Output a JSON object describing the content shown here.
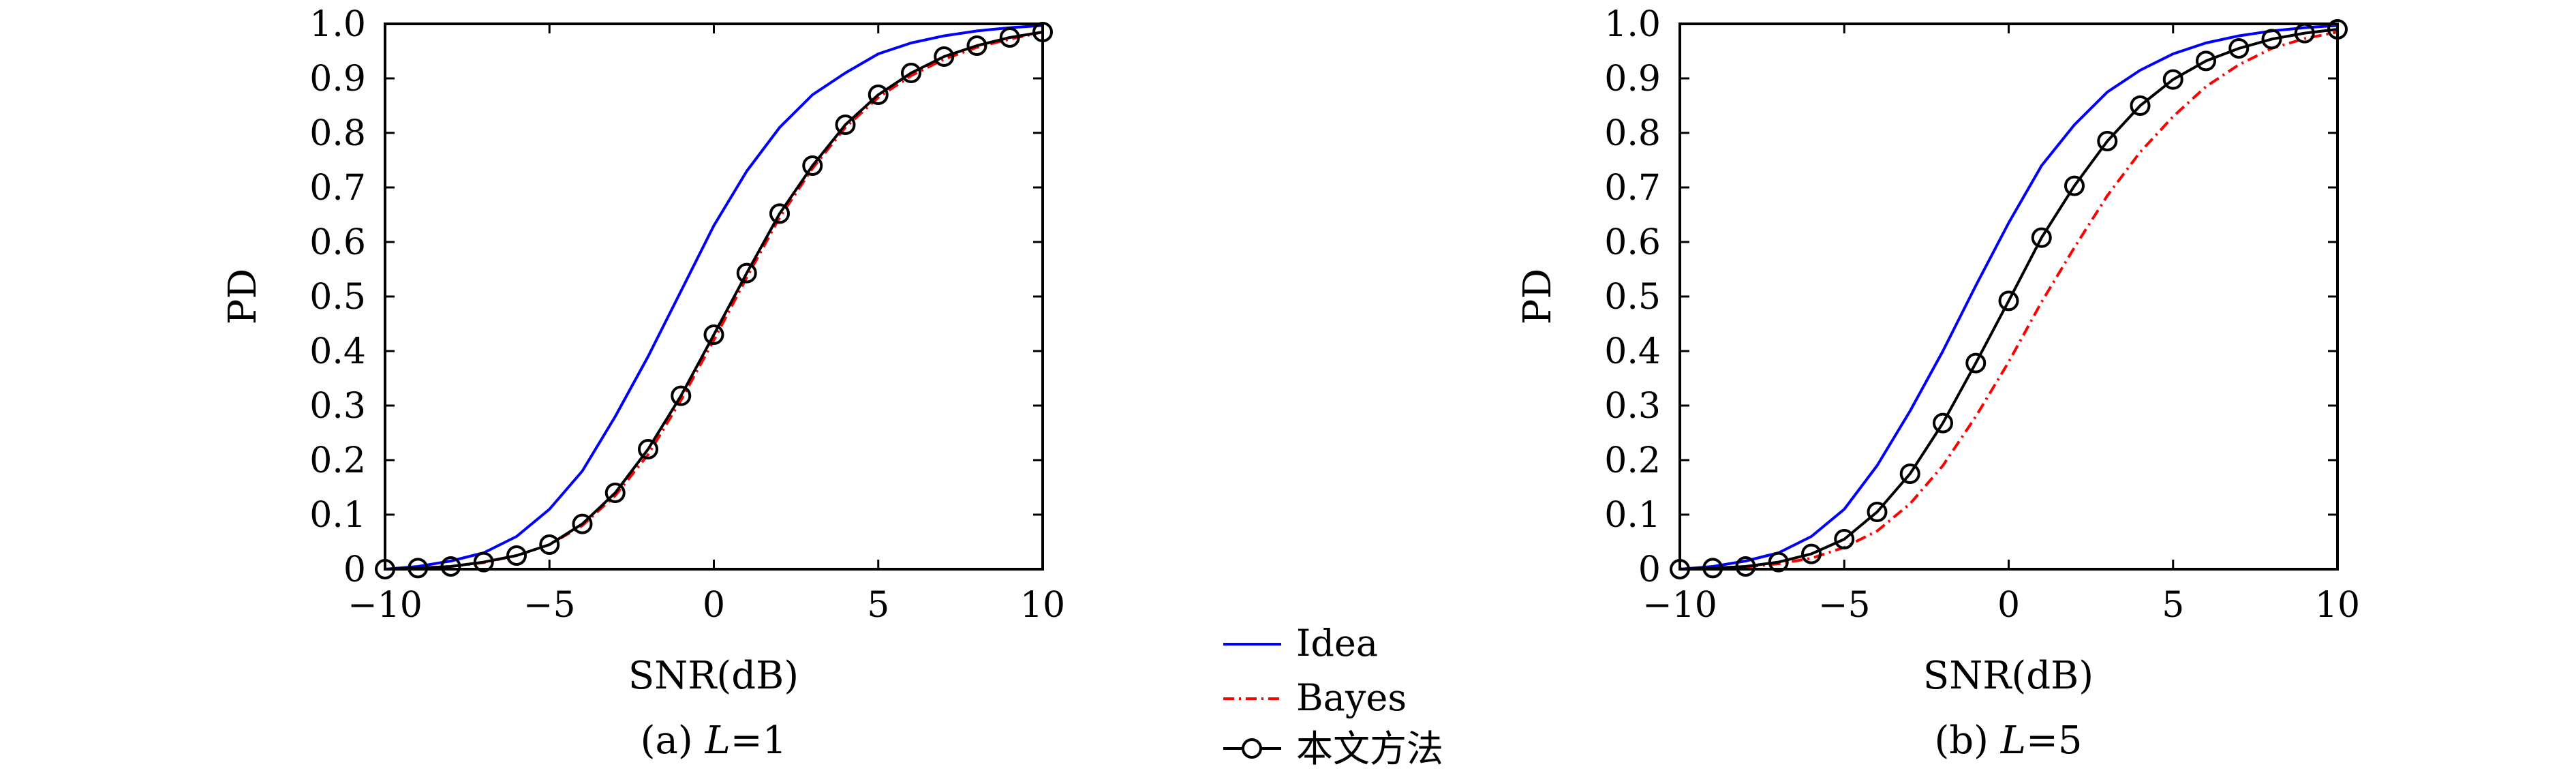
{
  "legend": {
    "items": [
      {
        "label": "Idea",
        "color": "#0000ff",
        "style": "solid"
      },
      {
        "label": "Bayes",
        "color": "#ff0000",
        "style": "dashdot"
      },
      {
        "label": "本文方法",
        "color": "#000000",
        "style": "solid-circle"
      }
    ]
  },
  "chart_data": [
    {
      "type": "line",
      "caption": "(a) L=1",
      "caption_prefix": "(a) ",
      "caption_var": "L",
      "caption_suffix": "=1",
      "xlabel": "SNR(dB)",
      "ylabel": "PD",
      "xlim": [
        -10,
        10
      ],
      "ylim": [
        0,
        1.0
      ],
      "xticks": [
        -10,
        -5,
        0,
        5,
        10
      ],
      "xtick_labels": [
        "−10",
        "−5",
        "0",
        "5",
        "10"
      ],
      "yticks": [
        0,
        0.1,
        0.2,
        0.3,
        0.4,
        0.5,
        0.6,
        0.7,
        0.8,
        0.9,
        1.0
      ],
      "ytick_labels": [
        "0",
        "0.1",
        "0.2",
        "0.3",
        "0.4",
        "0.5",
        "0.6",
        "0.7",
        "0.8",
        "0.9",
        "1.0"
      ],
      "grid": false,
      "x": [
        -10,
        -9,
        -8,
        -7,
        -6,
        -5,
        -4,
        -3,
        -2,
        -1,
        0,
        1,
        2,
        3,
        4,
        5,
        6,
        7,
        8,
        9,
        10
      ],
      "series": [
        {
          "name": "Idea",
          "color": "#0000ff",
          "style": "solid",
          "values": [
            0.0,
            0.005,
            0.015,
            0.03,
            0.06,
            0.11,
            0.18,
            0.28,
            0.39,
            0.51,
            0.63,
            0.73,
            0.81,
            0.87,
            0.91,
            0.945,
            0.965,
            0.978,
            0.987,
            0.993,
            0.997
          ]
        },
        {
          "name": "Bayes",
          "color": "#ff0000",
          "style": "dashdot",
          "values": [
            0.0,
            0.002,
            0.005,
            0.012,
            0.025,
            0.045,
            0.08,
            0.135,
            0.21,
            0.31,
            0.42,
            0.535,
            0.645,
            0.735,
            0.81,
            0.865,
            0.905,
            0.935,
            0.957,
            0.972,
            0.985
          ]
        },
        {
          "name": "本文方法",
          "color": "#000000",
          "style": "solid-circle",
          "values": [
            0.0,
            0.002,
            0.005,
            0.013,
            0.025,
            0.045,
            0.083,
            0.14,
            0.22,
            0.318,
            0.43,
            0.543,
            0.652,
            0.74,
            0.815,
            0.87,
            0.91,
            0.94,
            0.96,
            0.975,
            0.985
          ]
        }
      ]
    },
    {
      "type": "line",
      "caption": "(b) L=5",
      "caption_prefix": "(b) ",
      "caption_var": "L",
      "caption_suffix": "=5",
      "xlabel": "SNR(dB)",
      "ylabel": "PD",
      "xlim": [
        -10,
        10
      ],
      "ylim": [
        0,
        1.0
      ],
      "xticks": [
        -10,
        -5,
        0,
        5,
        10
      ],
      "xtick_labels": [
        "−10",
        "−5",
        "0",
        "5",
        "10"
      ],
      "yticks": [
        0,
        0.1,
        0.2,
        0.3,
        0.4,
        0.5,
        0.6,
        0.7,
        0.8,
        0.9,
        1.0
      ],
      "ytick_labels": [
        "0",
        "0.1",
        "0.2",
        "0.3",
        "0.4",
        "0.5",
        "0.6",
        "0.7",
        "0.8",
        "0.9",
        "1.0"
      ],
      "grid": false,
      "x": [
        -10,
        -9,
        -8,
        -7,
        -6,
        -5,
        -4,
        -3,
        -2,
        -1,
        0,
        1,
        2,
        3,
        4,
        5,
        6,
        7,
        8,
        9,
        10
      ],
      "series": [
        {
          "name": "Idea",
          "color": "#0000ff",
          "style": "solid",
          "values": [
            0.0,
            0.005,
            0.015,
            0.03,
            0.06,
            0.11,
            0.19,
            0.29,
            0.4,
            0.52,
            0.635,
            0.74,
            0.815,
            0.875,
            0.915,
            0.945,
            0.965,
            0.978,
            0.987,
            0.993,
            0.997
          ]
        },
        {
          "name": "Bayes",
          "color": "#ff0000",
          "style": "dashdot",
          "values": [
            0.0,
            0.002,
            0.004,
            0.01,
            0.02,
            0.04,
            0.07,
            0.12,
            0.19,
            0.28,
            0.38,
            0.49,
            0.59,
            0.685,
            0.765,
            0.83,
            0.885,
            0.925,
            0.955,
            0.973,
            0.985
          ]
        },
        {
          "name": "本文方法",
          "color": "#000000",
          "style": "solid-circle",
          "values": [
            0.0,
            0.002,
            0.005,
            0.013,
            0.028,
            0.055,
            0.105,
            0.175,
            0.268,
            0.378,
            0.492,
            0.608,
            0.703,
            0.785,
            0.85,
            0.898,
            0.932,
            0.955,
            0.972,
            0.983,
            0.99
          ]
        }
      ]
    }
  ]
}
